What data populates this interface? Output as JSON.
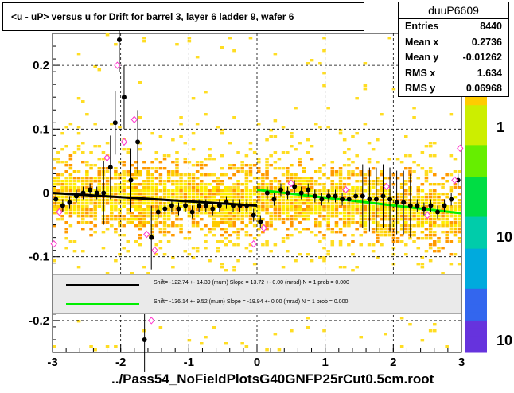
{
  "title": "<u - uP>       versus   u for Drift for barrel 3, layer 6 ladder 9, wafer 6",
  "footer": "../Pass54_NoFieldPlotsG40GNFP25rCut0.5cm.root",
  "stats": {
    "name": "duuP6609",
    "rows": [
      {
        "label": "Entries",
        "value": "8440"
      },
      {
        "label": "Mean x",
        "value": "0.2736"
      },
      {
        "label": "Mean y",
        "value": "-0.01262"
      },
      {
        "label": "RMS x",
        "value": "1.634"
      },
      {
        "label": "RMS y",
        "value": "0.06968"
      }
    ]
  },
  "legend": [
    {
      "color": "#000000",
      "text": "Shift=   -122.74 +- 14.39 (mum) Slope =    13.72 +- 0.00 (mrad)  N = 1 prob = 0.000"
    },
    {
      "color": "#00ee00",
      "text": "Shift=   -136.14 +- 9.52 (mum) Slope =   -19.94 +- 0.00 (mrad)  N = 1 prob = 0.000"
    }
  ],
  "colors": {
    "black_fit": "#000000",
    "green_fit": "#00ee00",
    "profile_marker": "#000000",
    "open_marker": "#ff33cc"
  },
  "chart_data": {
    "type": "heatmap",
    "title": "<u - uP>       versus   u for Drift for barrel 3, layer 6 ladder 9, wafer 6",
    "xlim": [
      -3,
      3
    ],
    "ylim": [
      -0.25,
      0.25
    ],
    "x_ticks": [
      "-3",
      "-2",
      "-1",
      "0",
      "1",
      "2",
      "3"
    ],
    "y_ticks": [
      "-0.2",
      "-0.1",
      "0",
      "0.1",
      "0.2"
    ],
    "colorbar_ticks": [
      "1",
      "10",
      "10"
    ],
    "grid": true,
    "profile_points": [
      [
        -2.95,
        -0.01
      ],
      [
        -2.85,
        -0.02
      ],
      [
        -2.75,
        -0.015
      ],
      [
        -2.65,
        -0.005
      ],
      [
        -2.55,
        0.0
      ],
      [
        -2.45,
        0.005
      ],
      [
        -2.35,
        0.0
      ],
      [
        -2.25,
        0.0
      ],
      [
        -2.15,
        0.04
      ],
      [
        -2.08,
        0.11
      ],
      [
        -2.02,
        0.24
      ],
      [
        -1.95,
        0.15
      ],
      [
        -1.85,
        0.02
      ],
      [
        -1.75,
        0.08
      ],
      [
        -1.65,
        -0.23
      ],
      [
        -1.55,
        -0.07
      ],
      [
        -1.45,
        -0.03
      ],
      [
        -1.35,
        -0.025
      ],
      [
        -1.25,
        -0.02
      ],
      [
        -1.15,
        -0.025
      ],
      [
        -1.05,
        -0.02
      ],
      [
        -0.95,
        -0.03
      ],
      [
        -0.85,
        -0.02
      ],
      [
        -0.75,
        -0.02
      ],
      [
        -0.65,
        -0.025
      ],
      [
        -0.55,
        -0.02
      ],
      [
        -0.45,
        -0.015
      ],
      [
        -0.35,
        -0.02
      ],
      [
        -0.25,
        -0.02
      ],
      [
        -0.15,
        -0.02
      ],
      [
        -0.05,
        -0.035
      ],
      [
        0.05,
        -0.045
      ],
      [
        0.15,
        0.0
      ],
      [
        0.25,
        -0.01
      ],
      [
        0.35,
        0.005
      ],
      [
        0.45,
        0.0
      ],
      [
        0.55,
        0.01
      ],
      [
        0.65,
        0.0
      ],
      [
        0.75,
        0.005
      ],
      [
        0.85,
        -0.005
      ],
      [
        0.95,
        -0.01
      ],
      [
        1.05,
        -0.005
      ],
      [
        1.15,
        -0.005
      ],
      [
        1.25,
        -0.01
      ],
      [
        1.35,
        -0.01
      ],
      [
        1.45,
        -0.005
      ],
      [
        1.55,
        -0.005
      ],
      [
        1.65,
        -0.01
      ],
      [
        1.75,
        -0.01
      ],
      [
        1.85,
        -0.005
      ],
      [
        1.95,
        -0.01
      ],
      [
        2.05,
        -0.015
      ],
      [
        2.15,
        -0.015
      ],
      [
        2.25,
        -0.02
      ],
      [
        2.35,
        -0.02
      ],
      [
        2.45,
        -0.025
      ],
      [
        2.55,
        -0.02
      ],
      [
        2.65,
        -0.03
      ],
      [
        2.75,
        -0.02
      ],
      [
        2.85,
        -0.01
      ],
      [
        2.95,
        0.02
      ]
    ],
    "open_points": [
      [
        -2.98,
        -0.08
      ],
      [
        -2.9,
        -0.03
      ],
      [
        -2.2,
        0.055
      ],
      [
        -2.05,
        0.2
      ],
      [
        -1.95,
        0.08
      ],
      [
        -1.8,
        0.115
      ],
      [
        -1.62,
        -0.065
      ],
      [
        -1.55,
        -0.2
      ],
      [
        -1.5,
        -0.09
      ],
      [
        -0.05,
        -0.08
      ],
      [
        0.1,
        -0.055
      ],
      [
        0.5,
        0.015
      ],
      [
        1.3,
        0.005
      ],
      [
        1.9,
        0.01
      ],
      [
        2.5,
        -0.035
      ],
      [
        2.9,
        0.02
      ],
      [
        2.98,
        0.07
      ]
    ],
    "fit_black": {
      "x": [
        -3,
        0
      ],
      "y": [
        0.0,
        -0.02
      ]
    },
    "fit_green": {
      "x": [
        0,
        3
      ],
      "y": [
        0.005,
        -0.032
      ]
    }
  }
}
